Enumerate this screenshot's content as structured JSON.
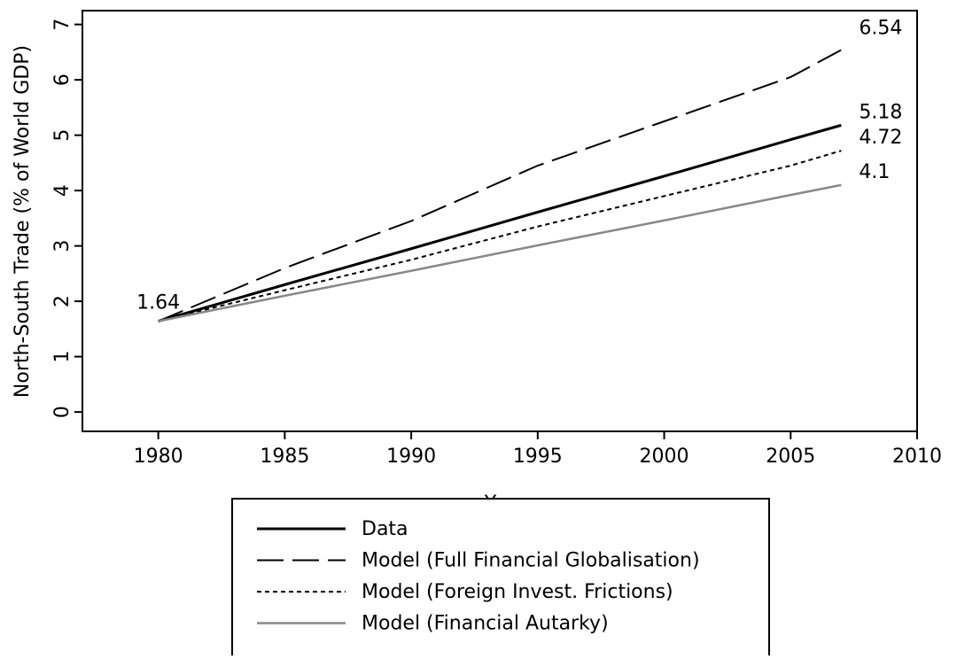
{
  "chart_data": {
    "type": "line",
    "x_label": "Year",
    "y_label": "North-South Trade (% of World GDP)",
    "x": [
      1980,
      1985,
      1990,
      1995,
      2000,
      2005,
      2007
    ],
    "series": [
      {
        "name": "Data",
        "color": "#000000",
        "dash": "solid",
        "values": [
          1.64,
          2.3,
          2.95,
          3.61,
          4.26,
          4.92,
          5.18
        ],
        "value_labels": [
          "1.64",
          null,
          null,
          null,
          null,
          null,
          "5.18"
        ]
      },
      {
        "name": "Model (Full Financial Globalisation)",
        "color": "#000000",
        "dash": "dashed",
        "values": [
          1.64,
          2.6,
          3.45,
          4.45,
          5.25,
          6.05,
          6.54
        ],
        "value_labels": [
          null,
          null,
          null,
          null,
          null,
          null,
          "6.54"
        ]
      },
      {
        "name": "Model (Foreign Invest. Frictions)",
        "color": "#000000",
        "dash": "dotted",
        "values": [
          1.64,
          2.2,
          2.75,
          3.35,
          3.9,
          4.45,
          4.72
        ],
        "value_labels": [
          null,
          null,
          null,
          null,
          null,
          null,
          "4.72"
        ]
      },
      {
        "name": "Model (Financial Autarky)",
        "color": "#888888",
        "dash": "solid",
        "values": [
          1.64,
          2.1,
          2.55,
          3.01,
          3.46,
          3.92,
          4.1
        ],
        "value_labels": [
          null,
          null,
          null,
          null,
          null,
          null,
          "4.1"
        ]
      }
    ],
    "xlim": [
      1977,
      2010
    ],
    "xticks": [
      1980,
      1985,
      1990,
      1995,
      2000,
      2005,
      2010
    ],
    "ylim": [
      -0.35,
      7.25
    ],
    "yticks": [
      0,
      1,
      2,
      3,
      4,
      5,
      6,
      7
    ]
  }
}
